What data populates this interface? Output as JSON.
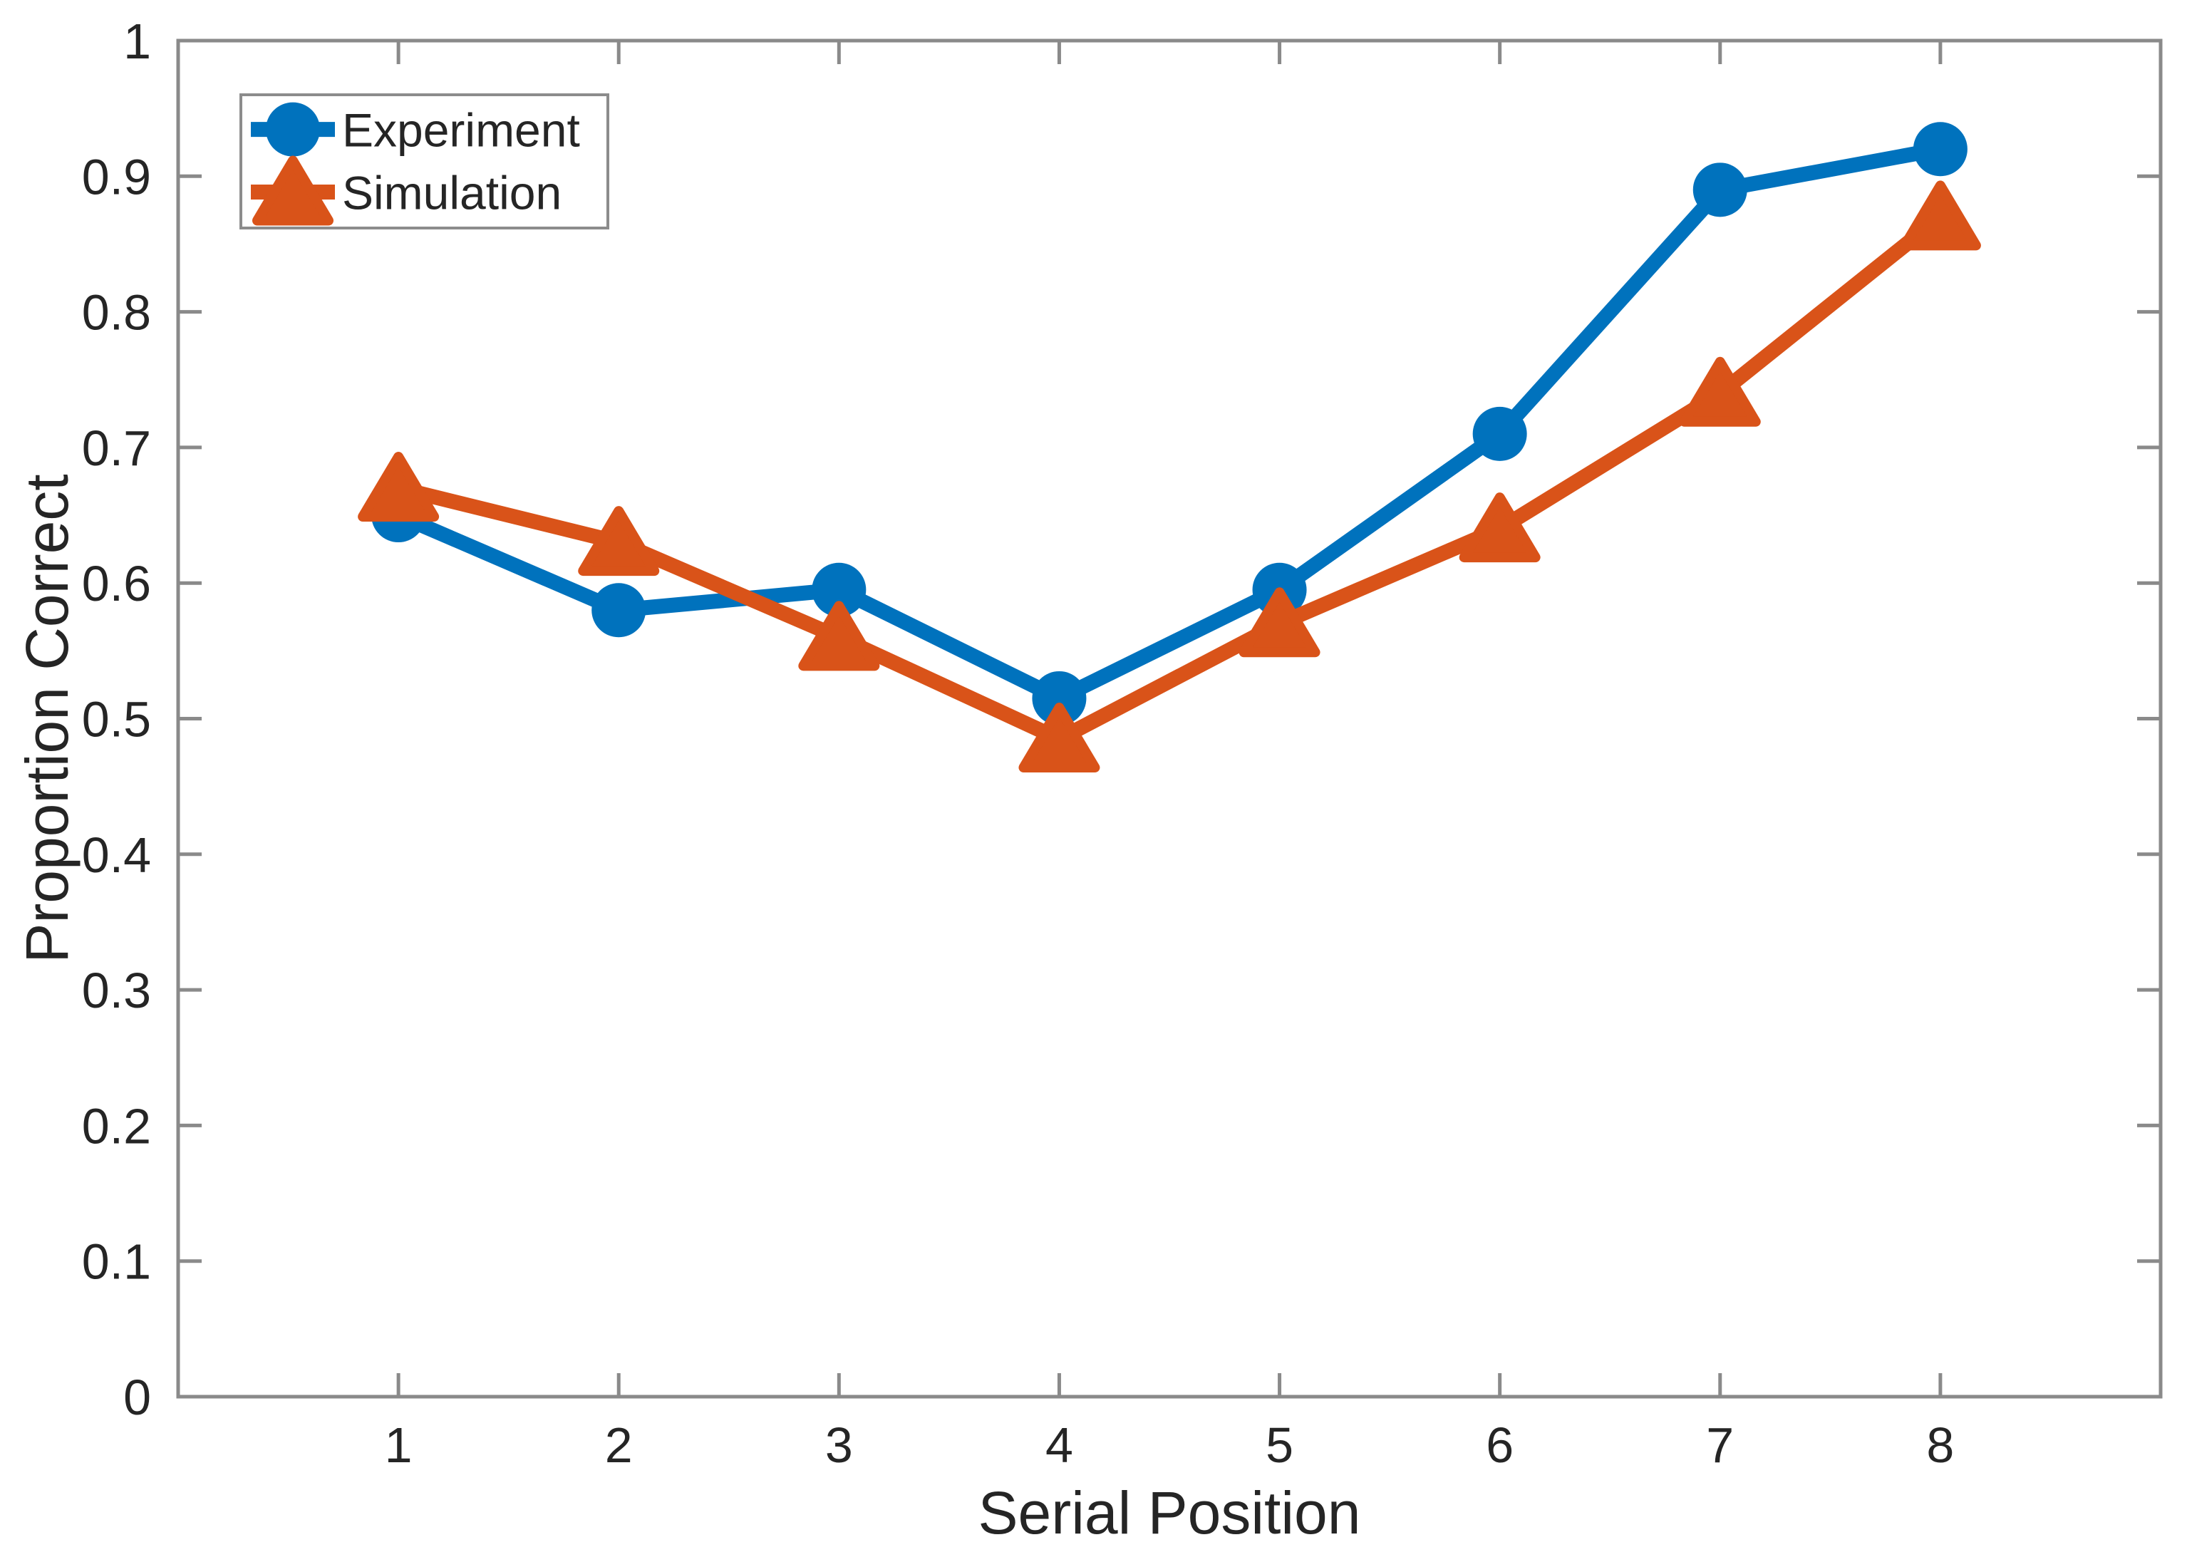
{
  "chart_data": {
    "type": "line",
    "x": [
      1,
      2,
      3,
      4,
      5,
      6,
      7,
      8
    ],
    "series": [
      {
        "name": "Experiment",
        "marker": "circle",
        "color": "#0072BD",
        "values": [
          0.65,
          0.58,
          0.595,
          0.515,
          0.595,
          0.71,
          0.89,
          0.92
        ]
      },
      {
        "name": "Simulation",
        "marker": "triangle-up",
        "color": "#D95319",
        "values": [
          0.67,
          0.63,
          0.56,
          0.485,
          0.57,
          0.64,
          0.74,
          0.87
        ]
      }
    ],
    "title": "",
    "xlabel": "Serial Position",
    "ylabel": "Proportion Correct",
    "xlim": [
      0,
      9
    ],
    "ylim": [
      0,
      1
    ],
    "xtick_values": [
      1,
      2,
      3,
      4,
      5,
      6,
      7,
      8
    ],
    "xtick_labels": [
      "1",
      "2",
      "3",
      "4",
      "5",
      "6",
      "7",
      "8"
    ],
    "ytick_values": [
      0,
      0.1,
      0.2,
      0.3,
      0.4,
      0.5,
      0.6,
      0.7,
      0.8,
      0.9,
      1
    ],
    "ytick_labels": [
      "0",
      "0.1",
      "0.2",
      "0.3",
      "0.4",
      "0.5",
      "0.6",
      "0.7",
      "0.8",
      "0.9",
      "1"
    ],
    "grid": false,
    "legend_position": "top-left",
    "legend_entries": [
      "Experiment",
      "Simulation"
    ]
  },
  "colors": {
    "axis": "#8A8A8A",
    "tick_text": "#252525",
    "label_text": "#252525",
    "legend_border": "#8C8C8C",
    "legend_background": "#FFFFFF",
    "background": "#FFFFFF"
  }
}
